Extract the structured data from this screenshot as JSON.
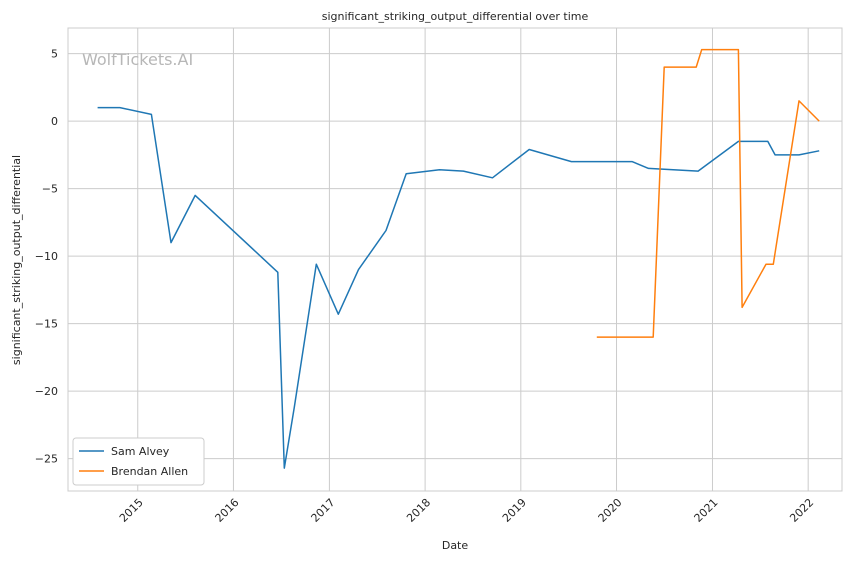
{
  "chart_data": {
    "type": "line",
    "title": "significant_striking_output_differential over time",
    "xlabel": "Date",
    "ylabel": "significant_striking_output_differential",
    "watermark": "WolfTickets.AI",
    "x_ticks": [
      "2015",
      "2016",
      "2017",
      "2018",
      "2019",
      "2020",
      "2021",
      "2022"
    ],
    "y_ticks": [
      5,
      0,
      -5,
      -10,
      -15,
      -20,
      -25
    ],
    "xlim": [
      "2014-04-10",
      "2022-05-10"
    ],
    "ylim": [
      -27.4,
      6.9
    ],
    "grid": true,
    "legend_position": "lower-left",
    "series": [
      {
        "name": "Sam Alvey",
        "color": "#1f77b4",
        "points": [
          [
            "2014-08-01",
            1.0
          ],
          [
            "2014-10-25",
            1.0
          ],
          [
            "2015-02-22",
            0.5
          ],
          [
            "2015-05-08",
            -9.0
          ],
          [
            "2015-08-08",
            -5.5
          ],
          [
            "2016-06-18",
            -11.2
          ],
          [
            "2016-07-13",
            -25.7
          ],
          [
            "2016-08-20",
            -21.2
          ],
          [
            "2016-11-12",
            -10.6
          ],
          [
            "2017-02-04",
            -14.3
          ],
          [
            "2017-04-22",
            -11.0
          ],
          [
            "2017-08-05",
            -8.1
          ],
          [
            "2017-10-21",
            -3.9
          ],
          [
            "2018-02-25",
            -3.6
          ],
          [
            "2018-05-27",
            -3.7
          ],
          [
            "2018-09-15",
            -4.2
          ],
          [
            "2019-02-02",
            -2.1
          ],
          [
            "2019-07-13",
            -3.0
          ],
          [
            "2020-02-29",
            -3.0
          ],
          [
            "2020-05-02",
            -3.5
          ],
          [
            "2020-11-07",
            -3.7
          ],
          [
            "2021-04-10",
            -1.5
          ],
          [
            "2021-07-31",
            -1.5
          ],
          [
            "2021-08-28",
            -2.5
          ],
          [
            "2021-11-27",
            -2.5
          ],
          [
            "2022-02-12",
            -2.2
          ]
        ]
      },
      {
        "name": "Brendan Allen",
        "color": "#ff7f0e",
        "points": [
          [
            "2019-10-18",
            -16.0
          ],
          [
            "2020-05-20",
            -16.0
          ],
          [
            "2020-07-01",
            4.0
          ],
          [
            "2020-10-31",
            4.0
          ],
          [
            "2020-11-21",
            5.3
          ],
          [
            "2021-04-10",
            5.3
          ],
          [
            "2021-04-24",
            -13.8
          ],
          [
            "2021-07-24",
            -10.6
          ],
          [
            "2021-08-21",
            -10.6
          ],
          [
            "2021-11-27",
            1.5
          ],
          [
            "2022-02-12",
            0.0
          ]
        ]
      }
    ]
  }
}
